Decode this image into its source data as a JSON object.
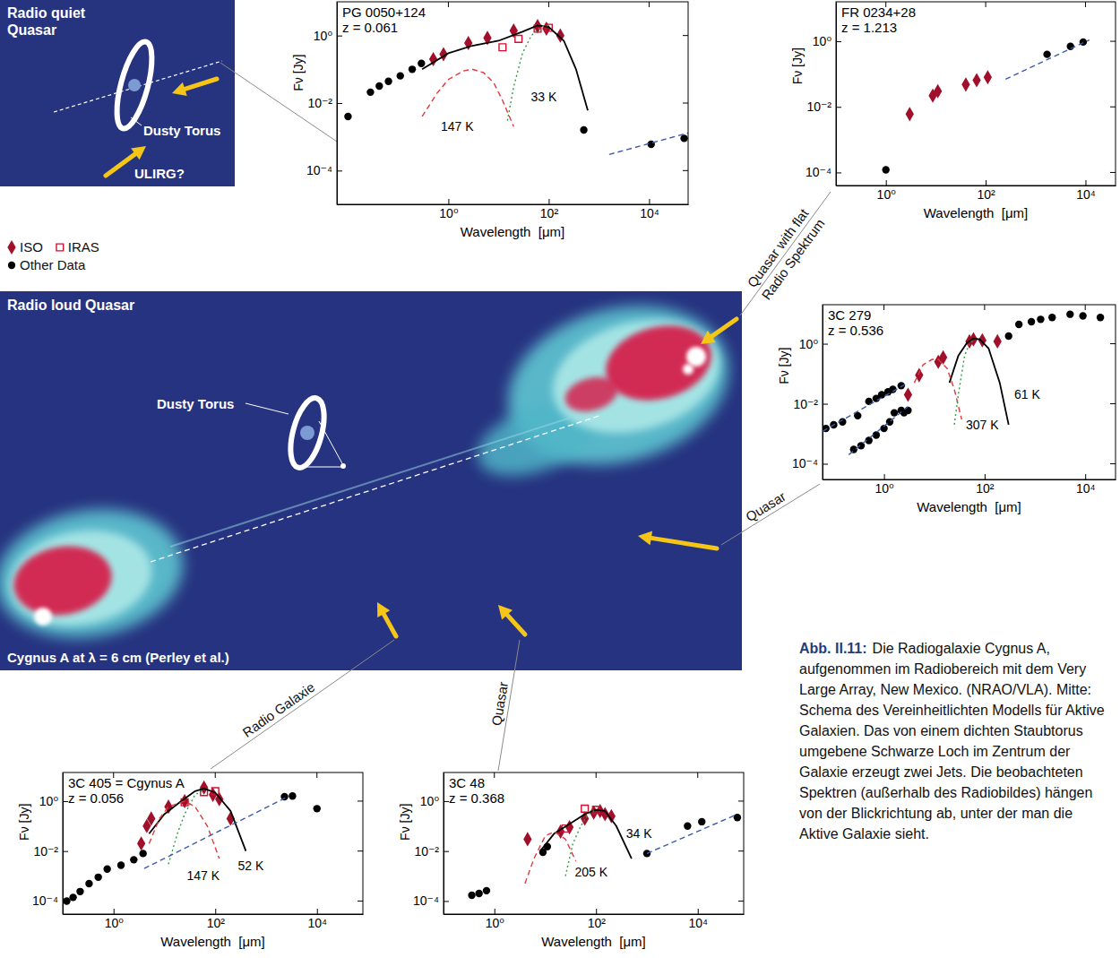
{
  "chart_data": [
    {
      "type": "scatter",
      "title": "PG 0050+124",
      "subtitle": "z = 0.061",
      "x_label": "Wavelength  [μm]",
      "y_label": "Fν [Jy]",
      "log": true,
      "xlim": [
        0.006,
        60000
      ],
      "ylim": [
        1e-05,
        10
      ],
      "xticks": [
        {
          "value": 1,
          "label": "10⁰"
        },
        {
          "value": 100,
          "label": "10²"
        },
        {
          "value": 10000,
          "label": "10⁴"
        }
      ],
      "yticks": [
        {
          "value": 0.0001,
          "label": "10⁻⁴"
        },
        {
          "value": 0.01,
          "label": "10⁻²"
        },
        {
          "value": 1,
          "label": "10⁰"
        }
      ],
      "series": [
        {
          "name": "Other Data",
          "type": "scatter",
          "marker": "circle",
          "color": "#000000",
          "x": [
            0.01,
            0.028,
            0.042,
            0.064,
            0.11,
            0.19,
            0.29,
            500,
            11000,
            50000
          ],
          "values": [
            0.004,
            0.021,
            0.032,
            0.044,
            0.064,
            0.1,
            0.15,
            0.0016,
            0.0006,
            0.0009
          ]
        },
        {
          "name": "ISO",
          "type": "scatter",
          "marker": "diamond",
          "color": "#a0102a",
          "x": [
            0.5,
            0.8,
            2.5,
            6,
            20,
            60,
            90,
            170
          ],
          "values": [
            0.2,
            0.28,
            0.6,
            0.85,
            1.4,
            1.9,
            1.6,
            1.0
          ]
        },
        {
          "name": "IRAS",
          "type": "scatter",
          "marker": "square-open",
          "color": "#d0102e",
          "x": [
            12,
            25,
            60,
            100
          ],
          "values": [
            0.45,
            0.8,
            1.6,
            1.7
          ]
        },
        {
          "type": "line",
          "line_style": "solid",
          "color": "#000000",
          "x": [
            0.3,
            1,
            3,
            10,
            30,
            60,
            100,
            200,
            350,
            600
          ],
          "values": [
            0.1,
            0.3,
            0.5,
            0.7,
            1.3,
            2.0,
            1.8,
            0.7,
            0.1,
            0.006
          ]
        },
        {
          "type": "line",
          "line_style": "dashed",
          "color": "#e0393e",
          "x": [
            0.3,
            0.6,
            1,
            2,
            3,
            5,
            8,
            12,
            20
          ],
          "values": [
            0.004,
            0.02,
            0.05,
            0.09,
            0.1,
            0.08,
            0.04,
            0.012,
            0.002
          ]
        },
        {
          "type": "line",
          "line_style": "dotted",
          "color": "#2e9e44",
          "x": [
            15,
            20,
            30,
            45,
            70,
            100
          ],
          "values": [
            0.003,
            0.03,
            0.3,
            1.0,
            1.8,
            2.0
          ]
        },
        {
          "type": "line",
          "line_style": "dashed",
          "color": "#3b5ca8",
          "x": [
            1600,
            60000
          ],
          "values": [
            0.0003,
            0.0013
          ]
        }
      ],
      "annotations": [
        {
          "text": "147 K",
          "x": 1.5,
          "y": 0.002
        },
        {
          "text": "33 K",
          "x": 80,
          "y": 0.015
        }
      ]
    },
    {
      "type": "scatter",
      "title": "FR 0234+28",
      "subtitle": "z = 1.213",
      "x_label": "Wavelength  [μm]",
      "y_label": "Fν [Jy]",
      "log": true,
      "xlim": [
        0.1,
        40000
      ],
      "ylim": [
        4e-05,
        16
      ],
      "xticks": [
        {
          "value": 1,
          "label": "10⁰"
        },
        {
          "value": 100,
          "label": "10²"
        },
        {
          "value": 10000,
          "label": "10⁴"
        }
      ],
      "yticks": [
        {
          "value": 0.0001,
          "label": "10⁻⁴"
        },
        {
          "value": 0.01,
          "label": "10⁻²"
        },
        {
          "value": 1,
          "label": "10⁰"
        }
      ],
      "series": [
        {
          "name": "Other Data",
          "type": "scatter",
          "marker": "circle",
          "color": "#000000",
          "x": [
            1,
            1700,
            5000,
            9000
          ],
          "values": [
            0.00012,
            0.4,
            0.7,
            0.95
          ]
        },
        {
          "name": "ISO",
          "type": "scatter",
          "marker": "diamond",
          "color": "#a0102a",
          "x": [
            3,
            8.7,
            11,
            40,
            66,
            110
          ],
          "values": [
            0.006,
            0.022,
            0.03,
            0.048,
            0.065,
            0.08
          ]
        },
        {
          "type": "line",
          "line_style": "dashed",
          "color": "#3b5ca8",
          "x": [
            250,
            12000
          ],
          "values": [
            0.07,
            1.1
          ]
        }
      ],
      "annotations": []
    },
    {
      "type": "scatter",
      "title": "3C 279",
      "subtitle": "z = 0.536",
      "x_label": "Wavelength  [μm]",
      "y_label": "Fν [Jy]",
      "log": true,
      "xlim": [
        0.06,
        40000
      ],
      "ylim": [
        3e-05,
        20
      ],
      "xticks": [
        {
          "value": 1,
          "label": "10⁰"
        },
        {
          "value": 100,
          "label": "10²"
        },
        {
          "value": 10000,
          "label": "10⁴"
        }
      ],
      "yticks": [
        {
          "value": 0.0001,
          "label": "10⁻⁴"
        },
        {
          "value": 0.01,
          "label": "10⁻²"
        },
        {
          "value": 1,
          "label": "10⁰"
        }
      ],
      "series": [
        {
          "name": "Other Data",
          "type": "scatter",
          "marker": "circle",
          "color": "#000000",
          "x": [
            0.07,
            0.1,
            0.15,
            0.3,
            0.5,
            0.7,
            0.9,
            1.2,
            1.5,
            2.2,
            0.25,
            0.35,
            0.5,
            0.7,
            1.0,
            1.3,
            1.6,
            2.2,
            2.5,
            3,
            300,
            480,
            850,
            1300,
            2200,
            5000,
            9000,
            20000
          ],
          "values": [
            0.0015,
            0.002,
            0.0025,
            0.004,
            0.012,
            0.015,
            0.02,
            0.025,
            0.03,
            0.04,
            0.0003,
            0.0004,
            0.0006,
            0.0009,
            0.0015,
            0.0025,
            0.005,
            0.006,
            0.005,
            0.006,
            1.8,
            4.4,
            5.4,
            6.5,
            7.5,
            9.6,
            8.5,
            7.5
          ]
        },
        {
          "name": "ISO",
          "type": "scatter",
          "marker": "diamond",
          "color": "#a0102a",
          "x": [
            3,
            5,
            12,
            15,
            50,
            60,
            90,
            180
          ],
          "values": [
            0.02,
            0.09,
            0.25,
            0.35,
            1.2,
            1.4,
            1.3,
            1.2
          ]
        },
        {
          "type": "line",
          "line_style": "solid",
          "color": "#000000",
          "x": [
            20,
            30,
            45,
            60,
            80,
            120,
            200,
            300
          ],
          "values": [
            0.05,
            0.4,
            1.1,
            1.5,
            1.4,
            0.7,
            0.05,
            0.002
          ]
        },
        {
          "type": "line",
          "line_style": "dashed",
          "color": "#e0393e",
          "x": [
            4,
            6,
            9,
            12,
            18,
            25,
            35
          ],
          "values": [
            0.05,
            0.2,
            0.3,
            0.3,
            0.15,
            0.03,
            0.003
          ]
        },
        {
          "type": "line",
          "line_style": "dotted",
          "color": "#2e9e44",
          "x": [
            25,
            30,
            40,
            50,
            60
          ],
          "values": [
            0.002,
            0.02,
            0.4,
            1.0,
            1.3
          ]
        },
        {
          "type": "line",
          "line_style": "dashed",
          "color": "#3b5ca8",
          "x": [
            0.06,
            3
          ],
          "values": [
            0.0012,
            0.05
          ]
        },
        {
          "type": "line",
          "line_style": "dashed",
          "color": "#3b5ca8",
          "x": [
            0.2,
            3
          ],
          "values": [
            0.0002,
            0.008
          ]
        }
      ],
      "annotations": [
        {
          "text": "307 K",
          "x": 90,
          "y": 0.002
        },
        {
          "text": "61 K",
          "x": 700,
          "y": 0.02
        }
      ]
    },
    {
      "type": "scatter",
      "title": "3C 405 = Cgynus A",
      "subtitle": "z = 0.056",
      "x_label": "Wavelength  [μm]",
      "y_label": "Fν [Jy]",
      "log": true,
      "xlim": [
        0.1,
        80000
      ],
      "ylim": [
        3e-05,
        14
      ],
      "xticks": [
        {
          "value": 1,
          "label": "10⁰"
        },
        {
          "value": 100,
          "label": "10²"
        },
        {
          "value": 10000,
          "label": "10⁴"
        }
      ],
      "yticks": [
        {
          "value": 0.0001,
          "label": "10⁻⁴"
        },
        {
          "value": 0.01,
          "label": "10⁻²"
        },
        {
          "value": 1,
          "label": "10⁰"
        }
      ],
      "series": [
        {
          "name": "Other Data",
          "type": "scatter",
          "marker": "circle",
          "color": "#000000",
          "x": [
            0.12,
            0.16,
            0.22,
            0.33,
            0.5,
            0.75,
            1.4,
            2.5,
            3.8,
            2300,
            3300,
            10000
          ],
          "values": [
            0.0001,
            0.00014,
            0.00024,
            0.0005,
            0.0009,
            0.0019,
            0.0027,
            0.0045,
            0.008,
            1.5,
            1.6,
            0.5
          ]
        },
        {
          "name": "ISO",
          "type": "scatter",
          "marker": "diamond",
          "color": "#a0102a",
          "x": [
            3.5,
            4.5,
            5.5,
            12,
            25,
            60,
            90,
            120,
            200
          ],
          "values": [
            0.02,
            0.1,
            0.2,
            0.6,
            1.0,
            3.5,
            1.8,
            1.2,
            0.2
          ]
        },
        {
          "name": "IRAS",
          "type": "scatter",
          "marker": "square-open",
          "color": "#d0102e",
          "x": [
            25,
            60,
            100
          ],
          "values": [
            0.9,
            2.3,
            2.5
          ]
        },
        {
          "type": "line",
          "line_style": "solid",
          "color": "#000000",
          "x": [
            5,
            10,
            20,
            40,
            60,
            100,
            200,
            400
          ],
          "values": [
            0.05,
            0.3,
            0.9,
            2.5,
            3.2,
            2.2,
            0.4,
            0.01
          ]
        },
        {
          "type": "line",
          "line_style": "dashed",
          "color": "#e0393e",
          "x": [
            5,
            8,
            12,
            25,
            40,
            70,
            120
          ],
          "values": [
            0.02,
            0.2,
            0.6,
            1.0,
            0.6,
            0.1,
            0.005
          ]
        },
        {
          "type": "line",
          "line_style": "dotted",
          "color": "#2e9e44",
          "x": [
            12,
            18,
            25,
            40,
            60
          ],
          "values": [
            0.003,
            0.05,
            0.3,
            1.8,
            2.8
          ]
        },
        {
          "type": "line",
          "line_style": "dashed",
          "color": "#3b5ca8",
          "x": [
            4,
            2500
          ],
          "values": [
            0.002,
            1.4
          ]
        }
      ],
      "annotations": [
        {
          "text": "147 K",
          "x": 58,
          "y": 0.001
        },
        {
          "text": "52 K",
          "x": 500,
          "y": 0.0025
        }
      ]
    },
    {
      "type": "scatter",
      "title": "3C 48",
      "subtitle": "z = 0.368",
      "x_label": "Wavelength  [μm]",
      "y_label": "Fν [Jy]",
      "log": true,
      "xlim": [
        0.1,
        80000
      ],
      "ylim": [
        3e-05,
        14
      ],
      "xticks": [
        {
          "value": 1,
          "label": "10⁰"
        },
        {
          "value": 100,
          "label": "10²"
        },
        {
          "value": 10000,
          "label": "10⁴"
        }
      ],
      "yticks": [
        {
          "value": 0.0001,
          "label": "10⁻⁴"
        },
        {
          "value": 0.01,
          "label": "10⁻²"
        },
        {
          "value": 1,
          "label": "10⁰"
        }
      ],
      "series": [
        {
          "name": "Other Data",
          "type": "scatter",
          "marker": "circle",
          "color": "#000000",
          "x": [
            0.36,
            0.5,
            0.7,
            9,
            11,
            1000,
            6300,
            12000,
            60000
          ],
          "values": [
            0.00017,
            0.0002,
            0.00026,
            0.009,
            0.015,
            0.008,
            0.1,
            0.15,
            0.22
          ]
        },
        {
          "name": "ISO",
          "type": "scatter",
          "marker": "diamond",
          "color": "#a0102a",
          "x": [
            4.5,
            20,
            30,
            60,
            90,
            120,
            150,
            200
          ],
          "values": [
            0.03,
            0.06,
            0.09,
            0.2,
            0.35,
            0.4,
            0.3,
            0.25
          ]
        },
        {
          "name": "IRAS",
          "type": "scatter",
          "marker": "square-open",
          "color": "#d0102e",
          "x": [
            25,
            60,
            100
          ],
          "values": [
            0.08,
            0.5,
            0.45
          ]
        },
        {
          "type": "line",
          "line_style": "solid",
          "color": "#000000",
          "x": [
            8,
            15,
            30,
            60,
            100,
            150,
            250,
            500
          ],
          "values": [
            0.01,
            0.05,
            0.12,
            0.3,
            0.45,
            0.4,
            0.1,
            0.005
          ]
        },
        {
          "type": "line",
          "line_style": "dashed",
          "color": "#e0393e",
          "x": [
            4,
            6,
            10,
            15,
            25,
            40
          ],
          "values": [
            0.0005,
            0.005,
            0.04,
            0.06,
            0.03,
            0.004
          ]
        },
        {
          "type": "line",
          "line_style": "dotted",
          "color": "#2e9e44",
          "x": [
            25,
            35,
            50,
            70,
            100
          ],
          "values": [
            0.001,
            0.02,
            0.1,
            0.3,
            0.45
          ]
        },
        {
          "type": "line",
          "line_style": "dashed",
          "color": "#3b5ca8",
          "x": [
            1000,
            60000
          ],
          "values": [
            0.008,
            0.3
          ]
        }
      ],
      "annotations": [
        {
          "text": "205 K",
          "x": 80,
          "y": 0.0015
        },
        {
          "text": "34 K",
          "x": 700,
          "y": 0.05
        }
      ]
    }
  ],
  "symbol_key": [
    {
      "name": "ISO",
      "marker": "diamond",
      "color": "#a0102a"
    },
    {
      "name": "IRAS",
      "marker": "square-open",
      "color": "#d0102e"
    },
    {
      "name": "Other Data",
      "marker": "circle",
      "color": "#000000"
    }
  ],
  "schematic": {
    "title": "Radio quiet Quasar",
    "torus": "Dusty Torus",
    "ulirg": "ULIRG?"
  },
  "radio_image": {
    "title": "Radio loud Quasar",
    "torus": "Dusty Torus",
    "credit": "Cygnus A at λ = 6 cm (Perley et al.)"
  },
  "views": [
    "Quasar with flat Radio Spektrum",
    "Quasar",
    "Radio Galaxie",
    "Quasar"
  ],
  "caption": {
    "label": "Abb. II.11:",
    "text": "Die Radiogalaxie Cygnus A, aufgenommen im Radiobereich mit dem Very Large Array, New Mexico. (NRAO/VLA). Mitte: Schema des Vereinheitlichten Modells für Aktive Galaxien. Das von einem dichten Staubtorus umgebene Schwarze Loch im Zentrum der Galaxie erzeugt zwei Jets. Die beobachteten Spektren (außerhalb des Radiobildes) hängen von der Blickrichtung ab, unter der man die Aktive Galaxie sieht."
  }
}
